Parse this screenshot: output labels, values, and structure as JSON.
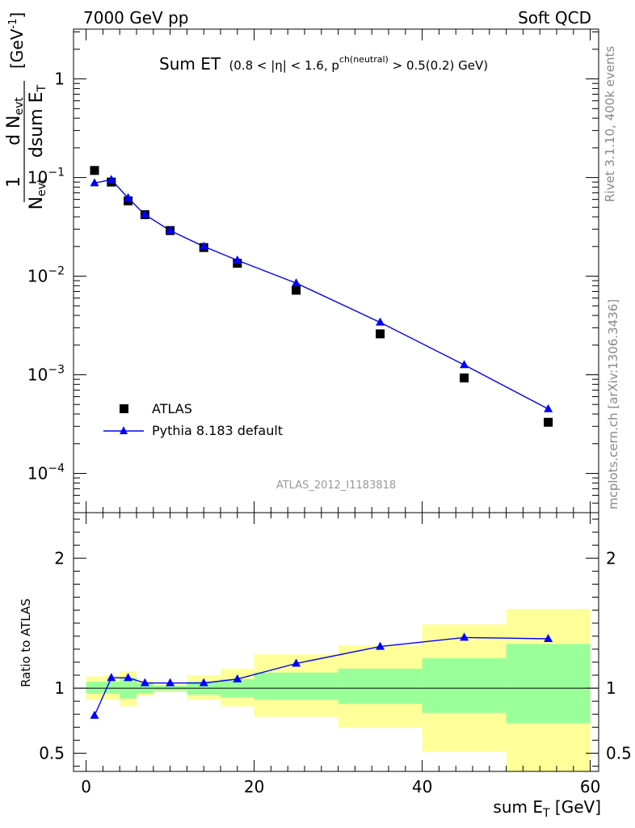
{
  "header": {
    "energy_label": "7000 GeV pp",
    "category_label": "Soft QCD"
  },
  "side_labels": {
    "rivet": "Rivet 3.1.10,  400k events",
    "mcplots": "mcplots.cern.ch [arXiv:1306.3436]"
  },
  "chart_data": [
    {
      "type": "scatter",
      "id": "main",
      "title_main": "Sum ET",
      "title_cut_a": "(0.8 < |η| < 1.6, p",
      "title_cut_sup": "ch(neutral)",
      "title_cut_b": " > 0.5(0.2) GeV)",
      "ylabel": "1/N_evt dN_evt/dsum E_T [GeV^-1]",
      "ylabel_parts": {
        "frac1_num": "1",
        "frac1_den": "N",
        "frac1_den_sub": "evt",
        "frac2_num": "d N",
        "frac2_num_sub": "evt",
        "frac2_den": "dsum E",
        "frac2_den_sub": "T",
        "unit": "[GeV",
        "unit_sup": "-1",
        "unit_end": "]"
      },
      "analysis_label": "ATLAS_2012_I1183818",
      "xlim": [
        -1.5,
        61
      ],
      "ylim": [
        4e-05,
        3.2
      ],
      "yscale": "log",
      "yticks": [
        {
          "value": 0.0001,
          "base": "10",
          "exp": "−4"
        },
        {
          "value": 0.001,
          "base": "10",
          "exp": "−3"
        },
        {
          "value": 0.01,
          "base": "10",
          "exp": "−2"
        },
        {
          "value": 0.1,
          "base": "10",
          "exp": "−1"
        },
        {
          "value": 1,
          "base": "1",
          "exp": ""
        }
      ],
      "legend": {
        "placement": "lower-left",
        "atlas": "ATLAS",
        "pythia": "Pythia 8.183 default"
      },
      "series": [
        {
          "name": "ATLAS",
          "marker": "square",
          "color": "#000000",
          "x": [
            1,
            3,
            5,
            7,
            10,
            14,
            18,
            25,
            35,
            45,
            55
          ],
          "y": [
            0.118,
            0.09,
            0.058,
            0.042,
            0.029,
            0.0195,
            0.0135,
            0.0072,
            0.0026,
            0.00093,
            0.00033
          ]
        },
        {
          "name": "Pythia 8.183 default",
          "marker": "triangle",
          "color": "#0000ff",
          "x": [
            1,
            3,
            5,
            7,
            10,
            14,
            18,
            25,
            35,
            45,
            55
          ],
          "y": [
            0.088,
            0.095,
            0.062,
            0.042,
            0.029,
            0.02,
            0.0145,
            0.0085,
            0.0034,
            0.00126,
            0.00045
          ]
        }
      ]
    },
    {
      "type": "area",
      "id": "ratio",
      "ylabel": "Ratio to ATLAS",
      "xlabel_main": "sum E",
      "xlabel_sub": "T",
      "xlabel_unit": " [GeV]",
      "xlim": [
        -1.5,
        61
      ],
      "ylim": [
        0.36,
        2.35
      ],
      "xticks": [
        0,
        20,
        40,
        60
      ],
      "yticks": [
        {
          "value": 0.5,
          "label": "0.5"
        },
        {
          "value": 1,
          "label": "1"
        },
        {
          "value": 2,
          "label": "2"
        }
      ],
      "bands": [
        {
          "x0": 0,
          "x1": 2,
          "g_lo": 0.96,
          "g_hi": 1.05,
          "y_lo": 0.91,
          "y_hi": 1.09
        },
        {
          "x0": 2,
          "x1": 4,
          "g_lo": 0.96,
          "g_hi": 1.05,
          "y_lo": 0.91,
          "y_hi": 1.1
        },
        {
          "x0": 4,
          "x1": 6,
          "g_lo": 0.92,
          "g_hi": 1.08,
          "y_lo": 0.86,
          "y_hi": 1.13
        },
        {
          "x0": 6,
          "x1": 8,
          "g_lo": 0.96,
          "g_hi": 1.04,
          "y_lo": 0.94,
          "y_hi": 1.06
        },
        {
          "x0": 8,
          "x1": 12,
          "g_lo": 0.98,
          "g_hi": 1.02,
          "y_lo": 0.97,
          "y_hi": 1.03
        },
        {
          "x0": 12,
          "x1": 16,
          "g_lo": 0.95,
          "g_hi": 1.05,
          "y_lo": 0.91,
          "y_hi": 1.1
        },
        {
          "x0": 16,
          "x1": 20,
          "g_lo": 0.93,
          "g_hi": 1.07,
          "y_lo": 0.86,
          "y_hi": 1.15
        },
        {
          "x0": 20,
          "x1": 30,
          "g_lo": 0.91,
          "g_hi": 1.12,
          "y_lo": 0.78,
          "y_hi": 1.26
        },
        {
          "x0": 30,
          "x1": 40,
          "g_lo": 0.88,
          "g_hi": 1.15,
          "y_lo": 0.7,
          "y_hi": 1.33
        },
        {
          "x0": 40,
          "x1": 50,
          "g_lo": 0.81,
          "g_hi": 1.23,
          "y_lo": 0.51,
          "y_hi": 1.49
        },
        {
          "x0": 50,
          "x1": 60,
          "g_lo": 0.73,
          "g_hi": 1.34,
          "y_lo": 0.36,
          "y_hi": 1.61
        }
      ],
      "band_colors": {
        "green": "#99ff99",
        "yellow": "#ffff99"
      },
      "series": [
        {
          "name": "Pythia 8.183 default",
          "color": "#0000ff",
          "x": [
            1,
            3,
            5,
            7,
            10,
            14,
            18,
            25,
            35,
            45,
            55
          ],
          "y": [
            0.79,
            1.08,
            1.08,
            1.04,
            1.04,
            1.04,
            1.07,
            1.19,
            1.32,
            1.39,
            1.38
          ],
          "err": [
            0,
            0.01,
            0.01,
            0.01,
            0.01,
            0.01,
            0.01,
            0.01,
            0.01,
            0.01,
            0.02
          ]
        }
      ]
    }
  ]
}
